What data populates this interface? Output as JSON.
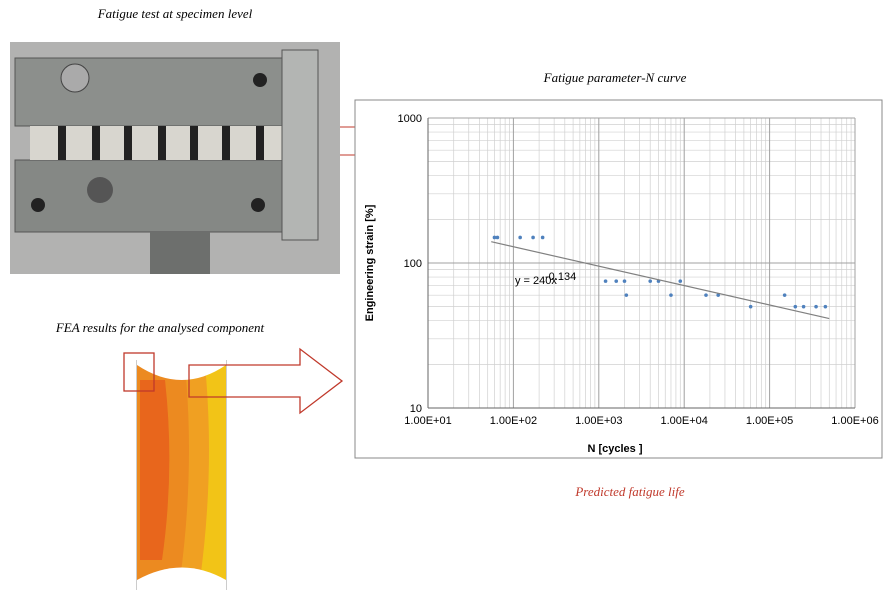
{
  "captions": {
    "specimen_test": "Fatigue test at specimen level",
    "fea": "FEA results for the analysed component",
    "chart_caption": "Fatigue parameter-N curve",
    "prediction": "Predicted fatigue life"
  },
  "chart_data": {
    "type": "scatter",
    "xlabel": "N [cycles ]",
    "ylabel": "Engineering strain [%]",
    "x": [
      60,
      65,
      120,
      170,
      220,
      1200,
      1600,
      2000,
      2100,
      4000,
      5000,
      7000,
      9000,
      18000,
      25000,
      60000,
      150000,
      200000,
      250000,
      350000,
      450000
    ],
    "values": [
      150,
      150,
      150,
      150,
      150,
      75,
      75,
      75,
      60,
      75,
      75,
      60,
      75,
      60,
      60,
      50,
      60,
      50,
      50,
      50,
      50
    ],
    "color": "#4f81bd",
    "xscale": "log",
    "yscale": "log",
    "xlim": [
      10,
      1000000
    ],
    "ylim": [
      10,
      1000
    ],
    "xticks": [
      {
        "value": 10,
        "label": "1.00E+01"
      },
      {
        "value": 100,
        "label": "1.00E+02"
      },
      {
        "value": 1000,
        "label": "1.00E+03"
      },
      {
        "value": 10000,
        "label": "1.00E+04"
      },
      {
        "value": 100000,
        "label": "1.00E+05"
      },
      {
        "value": 1000000,
        "label": "1.00E+06"
      }
    ],
    "yticks": [
      10,
      100,
      1000
    ],
    "grid": true,
    "trendline": {
      "coefficient": 240,
      "exponent": -0.134,
      "range": [
        55,
        500000
      ],
      "label": "y = 240x",
      "label_exponent": "-0.134",
      "color": "#808080"
    }
  }
}
